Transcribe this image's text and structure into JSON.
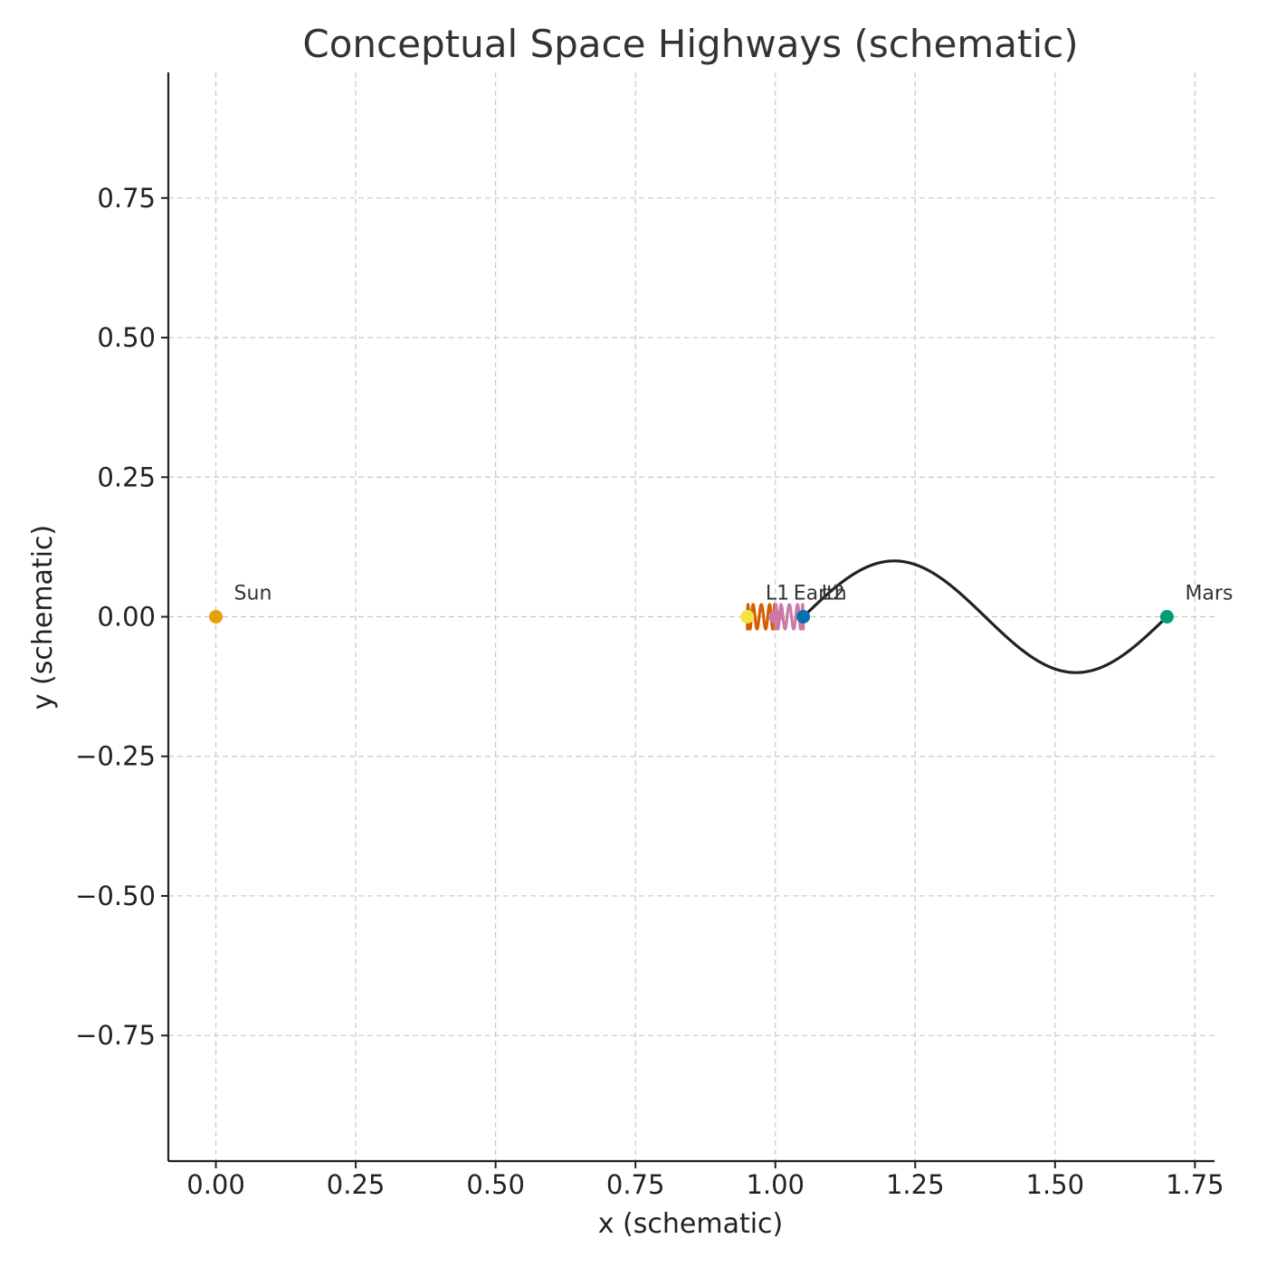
{
  "chart_data": {
    "type": "scatter",
    "title": "Conceptual Space Highways (schematic)",
    "xlabel": "x (schematic)",
    "ylabel": "y (schematic)",
    "xlim": [
      -0.085,
      1.785
    ],
    "ylim": [
      -0.975,
      0.975
    ],
    "xticks": [
      0.0,
      0.25,
      0.5,
      0.75,
      1.0,
      1.25,
      1.5,
      1.75
    ],
    "xtick_labels": [
      "0.00",
      "0.25",
      "0.50",
      "0.75",
      "1.00",
      "1.25",
      "1.50",
      "1.75"
    ],
    "yticks": [
      0.75,
      0.5,
      0.25,
      0.0,
      -0.25,
      -0.5,
      -0.75
    ],
    "ytick_labels": [
      "0.75",
      "0.50",
      "0.25",
      "0.00",
      "−0.25",
      "−0.50",
      "−0.75"
    ],
    "grid": true,
    "points": [
      {
        "label": "Sun",
        "x": 0.0,
        "y": 0.0,
        "color": "#e69f00"
      },
      {
        "label": "L1",
        "x": 0.95,
        "y": 0.0,
        "color": "#f0e442"
      },
      {
        "label": "Earth",
        "x": 1.0,
        "y": 0.0,
        "color": "#cc79a7"
      },
      {
        "label": "L2",
        "x": 1.05,
        "y": 0.0,
        "color": "#0072b2"
      },
      {
        "label": "Mars",
        "x": 1.7,
        "y": 0.0,
        "color": "#009e73"
      }
    ],
    "series": [
      {
        "type": "halo_orbit",
        "center_x": 0.975,
        "x_halfwidth": 0.025,
        "y_amplitude": 0.022,
        "loops": 5,
        "color": "#d55e00"
      },
      {
        "type": "halo_orbit",
        "center_x": 1.025,
        "x_halfwidth": 0.025,
        "y_amplitude": 0.022,
        "loops": 5,
        "color": "#cc79a7"
      },
      {
        "type": "transfer",
        "x_start": 1.05,
        "x_end": 1.7,
        "y_amplitude": 0.1,
        "color": "#222222"
      }
    ]
  }
}
